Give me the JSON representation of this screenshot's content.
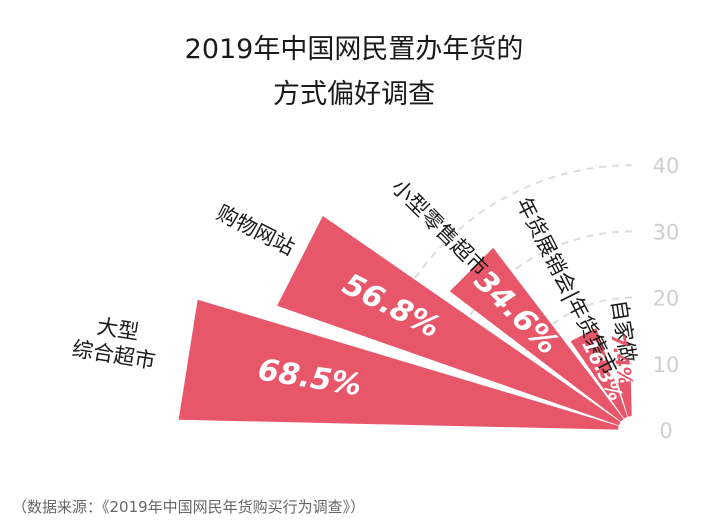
{
  "title_lines": [
    "2019年中国网民置办年货的",
    "方式偏好调查"
  ],
  "source": "（数据来源：《2019年中国网民年货购买行为调查》）",
  "colors": {
    "bar": "#e8566a",
    "grid": "#dddddd",
    "tick": "#cfcfcf"
  },
  "chart_data": {
    "type": "bar",
    "subtype": "radial-fan",
    "categories": [
      "大型\n综合超市",
      "购物网站",
      "小型零售超市",
      "年货展销会|年货集市",
      "自家做"
    ],
    "values": [
      68.5,
      56.8,
      34.6,
      16.3,
      7.4
    ],
    "value_labels": [
      "68.5%",
      "56.8%",
      "34.6%",
      "16.3%",
      "7.4%"
    ],
    "unit": "%",
    "ticks": [
      "0",
      "10",
      "20",
      "30",
      "40"
    ],
    "ylim": [
      0,
      70
    ],
    "grid": true
  }
}
